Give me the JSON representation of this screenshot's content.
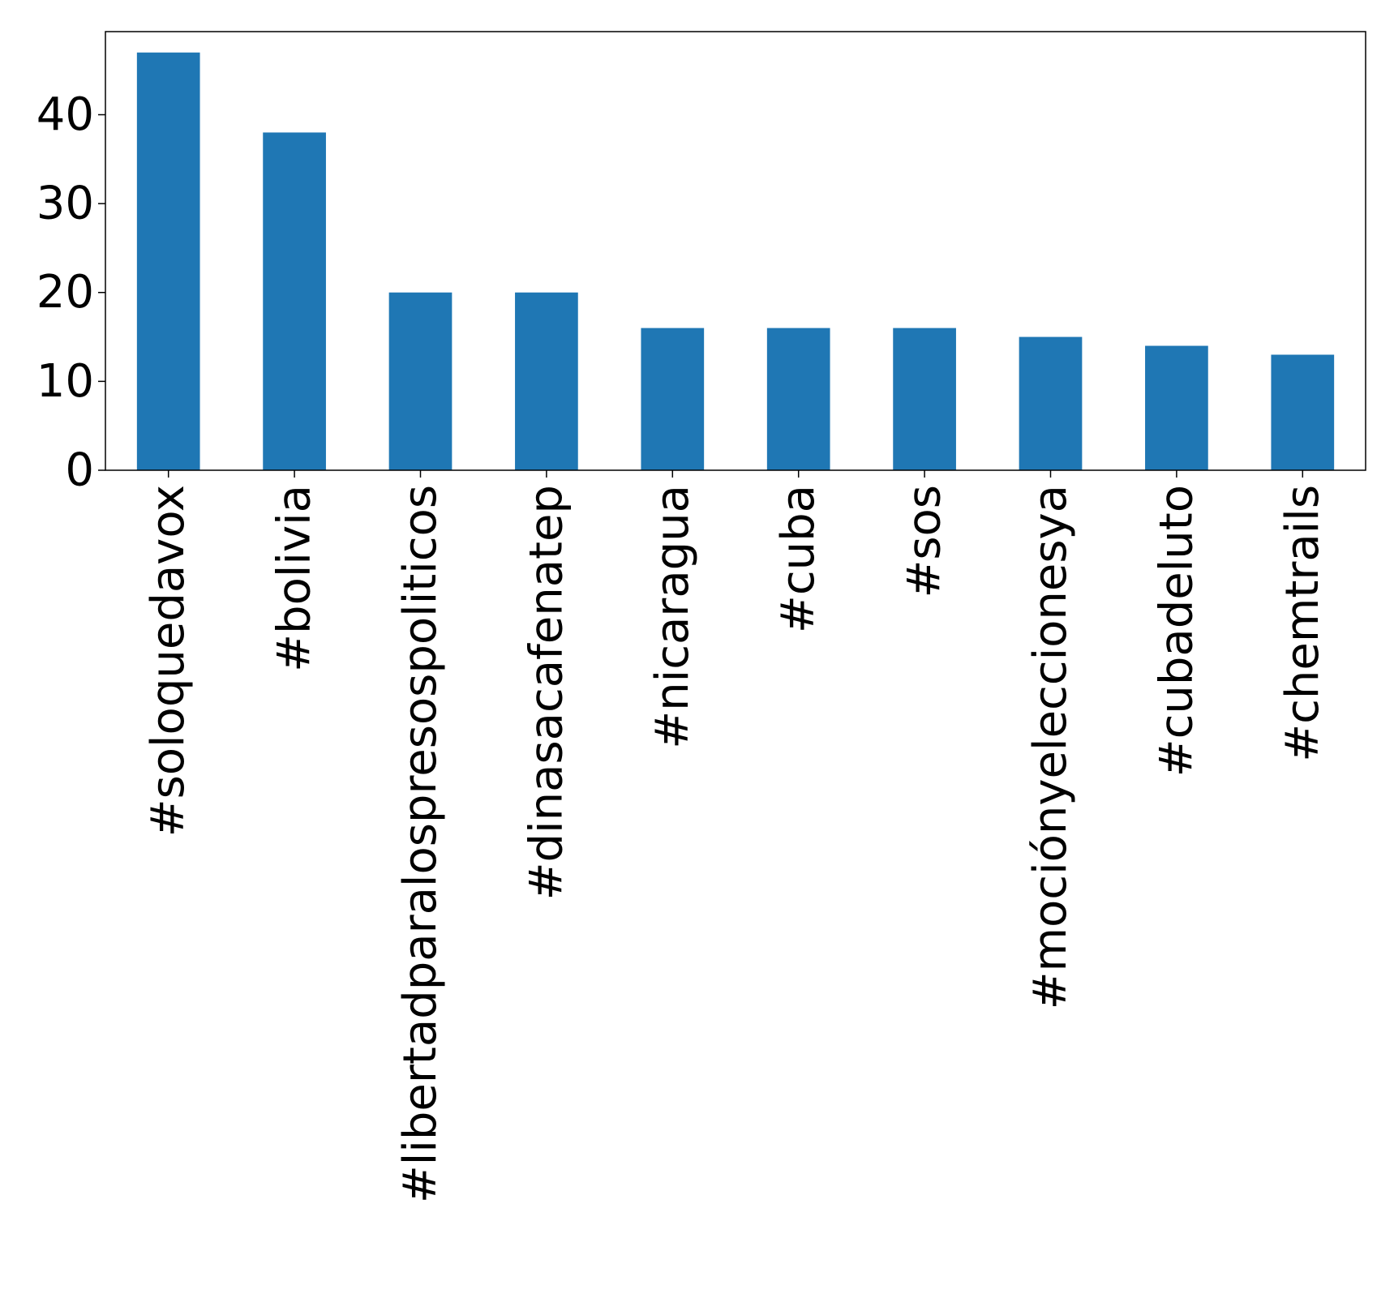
{
  "chart_data": {
    "type": "bar",
    "title": "",
    "xlabel": "",
    "ylabel": "",
    "categories": [
      "#soloquedavox",
      "#bolivia",
      "#libertadparalospresospoliticos",
      "#dinasacafenatep",
      "#nicaragua",
      "#cuba",
      "#sos",
      "#mociónyeleccionesya",
      "#cubadeluto",
      "#chemtrails"
    ],
    "values": [
      47,
      38,
      20,
      20,
      16,
      16,
      16,
      15,
      14,
      13
    ],
    "ylim": [
      0,
      49.35
    ],
    "yticks": [
      0,
      10,
      20,
      30,
      40
    ],
    "grid": false,
    "legend": "none",
    "bar_color": "#1f77b4"
  }
}
